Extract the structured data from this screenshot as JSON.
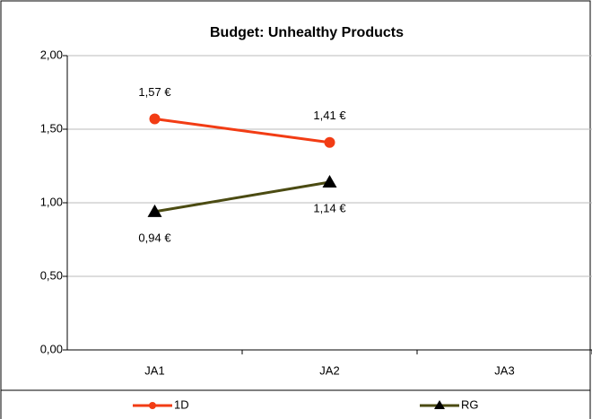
{
  "chart_data": {
    "type": "line",
    "title": "Budget: Unhealthy Products",
    "categories": [
      "JA1",
      "JA2",
      "JA3"
    ],
    "series": [
      {
        "name": "1D",
        "color": "#f23c14",
        "marker": "circle",
        "values": [
          1.57,
          1.41,
          null
        ],
        "value_labels": [
          "1,57 €",
          "1,41 €",
          null
        ]
      },
      {
        "name": "RG",
        "color": "#4b4b12",
        "marker": "triangle",
        "values": [
          0.94,
          1.14,
          null
        ],
        "value_labels": [
          "0,94 €",
          "1,14 €",
          null
        ]
      }
    ],
    "ylim": [
      0,
      2
    ],
    "yticks": [
      {
        "value": 0,
        "label": "0,00"
      },
      {
        "value": 0.5,
        "label": "0,50"
      },
      {
        "value": 1,
        "label": "1,00"
      },
      {
        "value": 1.5,
        "label": "1,50"
      },
      {
        "value": 2,
        "label": "2,00"
      }
    ],
    "grid": true,
    "legend": "bottom"
  }
}
